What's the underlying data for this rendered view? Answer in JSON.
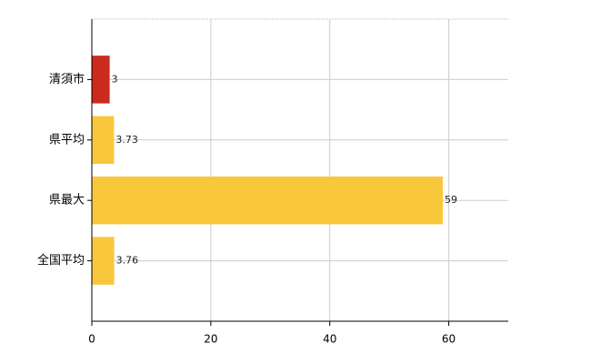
{
  "chart_data": {
    "type": "bar",
    "orientation": "horizontal",
    "categories": [
      "清須市",
      "県平均",
      "県最大",
      "全国平均"
    ],
    "values": [
      3,
      3.73,
      59,
      3.76
    ],
    "colors": [
      "#cc2a1f",
      "#f9c73c",
      "#f9c73c",
      "#f9c73c"
    ],
    "xlim": [
      0,
      70
    ],
    "xticks": [
      0,
      20,
      40,
      60
    ],
    "grid": true
  }
}
